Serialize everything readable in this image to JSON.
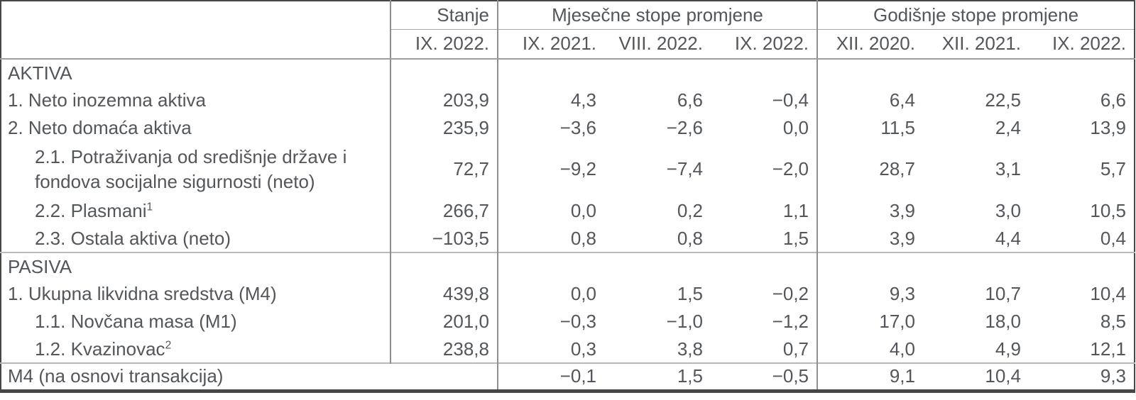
{
  "table": {
    "header": {
      "corner_label": "",
      "stanje_label": "Stanje",
      "monthly_group_label": "Mjesečne stope promjene",
      "yearly_group_label": "Godišnje stope promjene",
      "stanje_period": "IX. 2022.",
      "monthly_periods": [
        "IX. 2021.",
        "VIII. 2022.",
        "IX. 2022."
      ],
      "yearly_periods": [
        "XII. 2020.",
        "XII. 2021.",
        "IX. 2022."
      ]
    },
    "rows": [
      {
        "label": "AKTIVA",
        "section": true,
        "indent": 0,
        "stanje": "",
        "values": [
          "",
          "",
          "",
          "",
          "",
          ""
        ]
      },
      {
        "label": "1. Neto inozemna aktiva",
        "indent": 0,
        "stanje": "203,9",
        "values": [
          "4,3",
          "6,6",
          "−0,4",
          "6,4",
          "22,5",
          "6,6"
        ]
      },
      {
        "label": "2. Neto domaća aktiva",
        "indent": 0,
        "stanje": "235,9",
        "values": [
          "−3,6",
          "−2,6",
          "0,0",
          "11,5",
          "2,4",
          "13,9"
        ]
      },
      {
        "label": "2.1. Potraživanja od središnje države i fondova socijalne sigurnosti (neto)",
        "indent": 1,
        "tall": true,
        "stanje": "72,7",
        "values": [
          "−9,2",
          "−7,4",
          "−2,0",
          "28,7",
          "3,1",
          "5,7"
        ]
      },
      {
        "label": "2.2. Plasmani",
        "sup": "1",
        "indent": 1,
        "stanje": "266,7",
        "values": [
          "0,0",
          "0,2",
          "1,1",
          "3,9",
          "3,0",
          "10,5"
        ]
      },
      {
        "label": "2.3. Ostala aktiva (neto)",
        "indent": 1,
        "stanje": "−103,5",
        "values": [
          "0,8",
          "0,8",
          "1,5",
          "3,9",
          "4,4",
          "0,4"
        ]
      },
      {
        "label": "PASIVA",
        "section": true,
        "indent": 0,
        "divider": true,
        "stanje": "",
        "values": [
          "",
          "",
          "",
          "",
          "",
          ""
        ]
      },
      {
        "label": "1. Ukupna likvidna sredstva (M4)",
        "indent": 0,
        "stanje": "439,8",
        "values": [
          "0,0",
          "1,5",
          "−0,2",
          "9,3",
          "10,7",
          "10,4"
        ]
      },
      {
        "label": "1.1. Novčana masa (M1)",
        "indent": 1,
        "stanje": "201,0",
        "values": [
          "−0,3",
          "−1,0",
          "−1,2",
          "17,0",
          "18,0",
          "8,5"
        ]
      },
      {
        "label": "1.2. Kvazinovac",
        "sup": "2",
        "indent": 1,
        "stanje": "238,8",
        "values": [
          "0,3",
          "3,8",
          "0,7",
          "4,0",
          "4,9",
          "12,1"
        ]
      },
      {
        "label": "M4 (na osnovi transakcija)",
        "indent": 0,
        "divider": true,
        "merge_label": true,
        "values": [
          "−0,1",
          "1,5",
          "−0,5",
          "9,1",
          "10,4",
          "9,3"
        ]
      }
    ],
    "colors": {
      "text": "#53565A",
      "outer_border": "#474747",
      "group_divider": "#8f8f8f",
      "header_rule": "#9e9e9e",
      "section_rule": "#b9b9b9"
    }
  }
}
